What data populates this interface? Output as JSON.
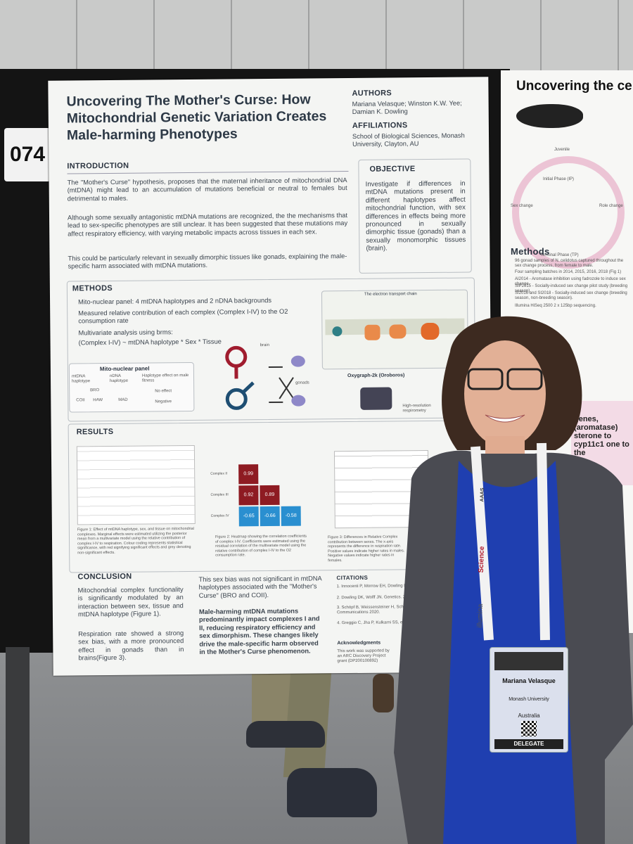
{
  "booth_number": "074",
  "poster": {
    "title": "Uncovering The Mother's Curse: How Mitochondrial Genetic Variation Creates Male-harming Phenotypes",
    "authors_heading": "AUTHORS",
    "authors": "Mariana Velasque; Winston K.W. Yee; Damian K. Dowling",
    "affiliations_heading": "AFFILIATIONS",
    "affiliations": "School of Biological Sciences, Monash University, Clayton, AU",
    "introduction_heading": "INTRODUCTION",
    "introduction": [
      "The \"Mother's Curse\" hypothesis, proposes that the maternal inheritance of mitochondrial DNA (mtDNA) might lead to an accumulation of mutations beneficial or neutral to females but detrimental to males.",
      "Although some sexually antagonistic mtDNA mutations are recognized, the the mechanisms that lead to sex-specific phenotypes are still unclear. It has been suggested that these mutations may affect respiratory efficiency, with varying metabolic impacts across tissues in each sex.",
      "This could be particularly relevant in sexually dimorphic tissues like gonads, explaining the male-specific harm associated with mtDNA mutations."
    ],
    "objective_heading": "OBJECTIVE",
    "objective": "Investigate if differences in mtDNA mutations present in different haplotypes affect mitochondrial function, with sex differences in effects being more pronounced in sexually dimorphic tissue (gonads) than a sexually monomorphic tissues (brain).",
    "methods_heading": "METHODS",
    "methods": [
      "Mito-nuclear panel: 4 mtDNA haplotypes and 2 nDNA backgrounds",
      "Measured relative contribution of each complex (Complex I-IV) to the O2 consumption rate",
      "Multivariate analysis using brms:",
      "(Complex I-IV) ~ mtDNA haplotype * Sex * Tissue"
    ],
    "panel": {
      "title": "Mito-nuclear panel",
      "columns": [
        "mtDNA haplotype",
        "nDNA haplotype",
        "Haplotype effect on male fitness"
      ],
      "items": [
        "BRO",
        "COII",
        "HAW",
        "MAD",
        "No effect",
        "Negative"
      ]
    },
    "diagram_labels": [
      "brain",
      "gonads",
      "The electron transport chain",
      "Oxygraph-2k (Oroboros)",
      "High-resolution respirometry"
    ],
    "results_heading": "RESULTS",
    "heatmap": {
      "rows": [
        "Complex II",
        "Complex III",
        "Complex IV"
      ],
      "values": [
        "0.99",
        "0.92",
        "0.89",
        "-0.65",
        "-0.66",
        "-0.58"
      ]
    },
    "figure_captions": [
      "Figure 1: Effect of mtDNA haplotype, sex, and tissue on mitochondrial complexes. Marginal effects were estimated utilizing the posterior mean from a multivariate model using the relative contribution of complex I-IV to respiration. Colour coding represents statistical significance, with red signifying significant effects and grey denoting non-significant effects.",
      "Figure 2: Heatmap showing the correlation coefficients of complex I-IV. Coefficients were estimated using the residual correlation of the multivariate model using the relative contribution of complex I-IV to the O2 consumption rate.",
      "Figure 3: Differences in Relative Complex contribution between sexes. The x-axis represents the difference in respiration rate. Positive values indicate higher rates in males. Negative values indicate higher rates in females."
    ],
    "conclusion_heading": "CONCLUSION",
    "conclusion": [
      "Mitochondrial complex functionality is significantly modulated by an interaction between sex, tissue and mtDNA haplotype (Figure 1).",
      "Respiration rate showed a strong sex bias, with a more pronounced effect in gonads than in brains(Figure 3)."
    ],
    "findings": [
      "This sex bias was not significant in mtDNA haplotypes associated with the \"Mother's Curse\" (BRO and COII).",
      "Male-harming mtDNA mutations predominantly impact complexes I and II, reducing respiratory efficiency and sex dimorphism. These changes likely drive the male-specific harm observed in the Mother's Curse phenomenon."
    ],
    "citations_heading": "CITATIONS",
    "citations": [
      "1. Innocenti P, Morrow EH, Dowling DK. Science 2011.",
      "2. Dowling DK, Wolff JN. Genetics. 2023.",
      "3. Schöpf B, Weissensteiner H, Schäfer G, et al. Nature Communications 2020.",
      "4. Greggio C, Jha P, Kulkarni SS, et al. Cell metabolism. 2017."
    ],
    "acknowledgments_heading": "Acknowledgments",
    "acknowledgments": "This work was supported by an ARC Discovery Project grant (DP200100892)"
  },
  "neighbor_poster": {
    "title": "Uncovering the cell",
    "stages": [
      "Juvenile",
      "Initial Phase (IP)",
      "Terminal Phase (TP)",
      "Sex change",
      "Role change"
    ],
    "methods_heading": "Methods",
    "methods": [
      "96 gonad samples of N. celidotus captured throughout the sex change process, from female to male.",
      "Four sampling batches in 2014, 2015, 2016, 2018 (Fig 1)",
      "AI2014 - Aromatase inhibition using fadrozole to induce sex change.",
      "SIP2015 - Socially-induced sex change pilot study (breeding season).",
      "SI2016 and SI2018 - Socially-induced sex change (breeding season, non-breeding season).",
      "Illumina HiSeq 2500 2 x 125bp sequencing."
    ],
    "fragment": "genes, (aromatase) sterone to cyp11c1 one to the"
  },
  "lanyard": [
    "Science",
    "AAAS",
    "illumina"
  ],
  "badge": {
    "name": "Mariana Velasque",
    "institution": "Monash University",
    "country": "Australia",
    "role": "DELEGATE"
  }
}
